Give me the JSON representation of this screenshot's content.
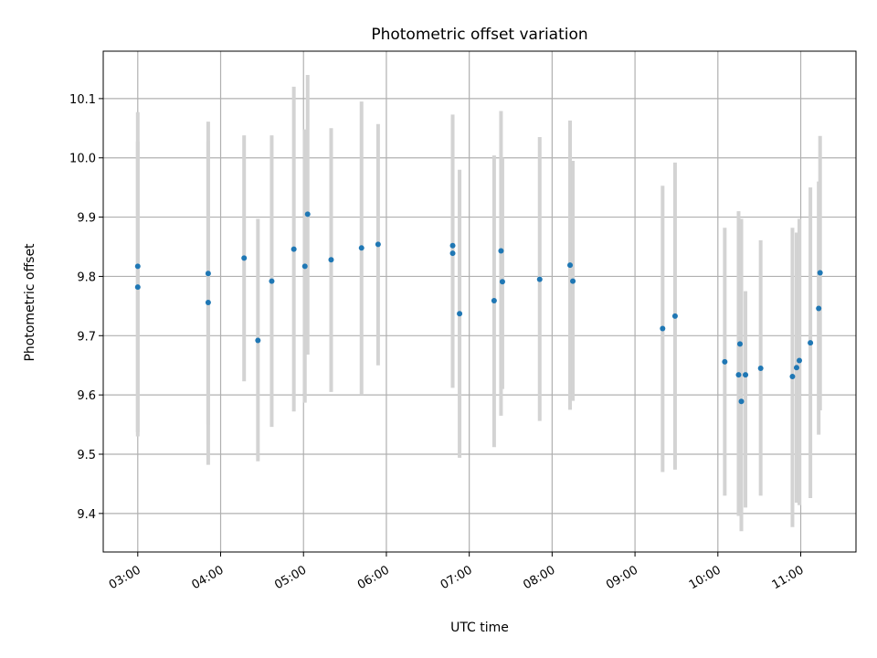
{
  "chart_data": {
    "type": "scatter",
    "title": "Photometric offset variation",
    "xlabel": "UTC time",
    "ylabel": "Photometric offset",
    "x_tick_labels": [
      "03:00",
      "04:00",
      "05:00",
      "06:00",
      "07:00",
      "08:00",
      "09:00",
      "10:00",
      "11:00"
    ],
    "y_tick_labels": [
      "9.4",
      "9.5",
      "9.6",
      "9.7",
      "9.8",
      "9.9",
      "10.0",
      "10.1"
    ],
    "xlim": [
      "02:35",
      "11:40"
    ],
    "ylim": [
      9.335,
      10.18
    ],
    "grid": true,
    "colors": {
      "points": "#1f77b4",
      "error_bars": "#d3d3d3",
      "grid": "#b0b0b0"
    },
    "series": [
      {
        "x": [
          "03:00",
          "03:00",
          "03:51",
          "03:51",
          "04:17",
          "04:27",
          "04:37",
          "04:53",
          "05:01",
          "05:03",
          "05:20",
          "05:42",
          "05:54",
          "06:48",
          "06:48",
          "06:53",
          "07:18",
          "07:23",
          "07:24",
          "07:51",
          "08:13",
          "08:15",
          "09:20",
          "09:29",
          "10:05",
          "10:15",
          "10:16",
          "10:17",
          "10:20",
          "10:31",
          "10:54",
          "10:57",
          "10:59",
          "11:07",
          "11:13",
          "11:14"
        ],
        "y": [
          9.817,
          9.782,
          9.805,
          9.756,
          9.831,
          9.692,
          9.792,
          9.846,
          9.817,
          9.905,
          9.828,
          9.848,
          9.854,
          9.852,
          9.839,
          9.737,
          9.759,
          9.843,
          9.791,
          9.795,
          9.819,
          9.792,
          9.712,
          9.733,
          9.656,
          9.634,
          9.686,
          9.589,
          9.634,
          9.645,
          9.631,
          9.646,
          9.658,
          9.688,
          9.746,
          9.806
        ],
        "err_low": [
          9.537,
          9.53,
          9.482,
          9.55,
          9.623,
          9.488,
          9.546,
          9.572,
          9.587,
          9.668,
          9.605,
          9.6,
          9.65,
          9.612,
          9.617,
          9.494,
          9.512,
          9.565,
          9.61,
          9.556,
          9.575,
          9.59,
          9.47,
          9.474,
          9.43,
          9.396,
          9.405,
          9.37,
          9.41,
          9.43,
          9.377,
          9.418,
          9.414,
          9.426,
          9.533,
          9.574
        ],
        "err_high": [
          10.077,
          10.028,
          10.061,
          10.028,
          10.038,
          9.897,
          10.038,
          10.12,
          10.048,
          10.14,
          10.05,
          10.095,
          10.057,
          10.073,
          10.066,
          9.98,
          10.004,
          10.079,
          10.0,
          10.035,
          10.063,
          9.995,
          9.953,
          9.992,
          9.882,
          9.91,
          9.875,
          9.897,
          9.775,
          9.861,
          9.882,
          9.874,
          9.897,
          9.95,
          9.96,
          10.037
        ]
      }
    ]
  }
}
